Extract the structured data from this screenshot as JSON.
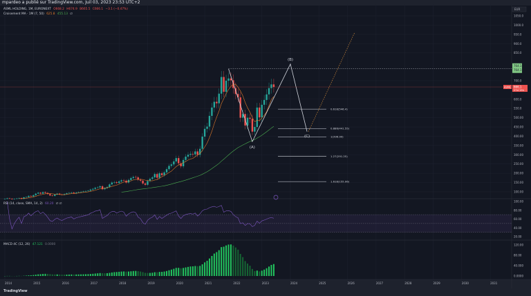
{
  "header": {
    "publisher_line": "mpardeo a publié sur TradingView.com, Juil 03, 2023 23:53 UTC+2"
  },
  "legend": {
    "symbol": "ASML HOLDING, 1M, EURONEXT",
    "open": "O668.2",
    "high": "H674.9",
    "low": "B665.5",
    "close": "C666.1",
    "change": "−3.1 (−0.47%)",
    "ma_label": "Croisement MA · 1M (7, 50)",
    "ma_fast": "625.8",
    "ma_slow": "455.13",
    "ma_extra": "∅",
    "rsi_label": "RSI (14, close, SMA, 14, 2)",
    "rsi_value": "60.20",
    "rsi_extra": "∅ ∅",
    "macd_label": "MACD 4C (12, 26)",
    "macd_value": "47.121",
    "macd_zero": "0.0000"
  },
  "colors": {
    "background": "#131722",
    "up": "#26a69a",
    "down": "#ef5350",
    "ma_fast": "#e07a2b",
    "ma_slow": "#4caf50",
    "rsi": "#7e57c2",
    "macd": "#22c55e",
    "wave": "#d1d4dc",
    "projection": "#d08a3a"
  },
  "price_axis": {
    "currency": "EUR",
    "ticks": [
      "1050.0",
      "1000.0",
      "950.0",
      "900.0",
      "850.0",
      "700.0",
      "600.0",
      "550.0",
      "500.00",
      "450.00",
      "400.00",
      "350.00",
      "300.00",
      "250.00",
      "200.00",
      "150.00",
      "100.00"
    ],
    "last_price_label": "666.1",
    "countdown": "27d 19h",
    "symbol_tag": "ASML",
    "level_label_1": "764.1",
    "level_label_2": "764.1"
  },
  "rsi_axis": {
    "ticks": [
      "100.00",
      "80.00",
      "60.00",
      "40.00",
      "20.00"
    ]
  },
  "macd_axis": {
    "ticks": [
      "120.00",
      "80.00",
      "40.000",
      "0.0000"
    ]
  },
  "time_axis": {
    "ticks": [
      "2014",
      "2015",
      "2016",
      "2017",
      "2018",
      "2019",
      "2020",
      "2021",
      "2022",
      "2023",
      "2024",
      "2025",
      "2026",
      "2027",
      "2028",
      "2029",
      "2030",
      "2031"
    ]
  },
  "footer": {
    "brand": "TradingView"
  },
  "chart_data": {
    "type": "candlestick",
    "interval": "1M",
    "start": "2014-01",
    "closes": [
      62,
      65,
      63,
      60,
      62,
      64,
      66,
      62,
      70,
      72,
      78,
      75,
      82,
      90,
      95,
      90,
      98,
      94,
      88,
      80,
      78,
      85,
      90,
      86,
      84,
      88,
      92,
      94,
      96,
      92,
      96,
      98,
      100,
      102,
      104,
      106,
      112,
      116,
      122,
      124,
      130,
      114,
      120,
      126,
      140,
      150,
      152,
      148,
      156,
      162,
      160,
      150,
      164,
      174,
      180,
      178,
      165,
      160,
      145,
      138,
      158,
      170,
      178,
      196,
      176,
      200,
      190,
      205,
      222,
      240,
      248,
      264,
      282,
      254,
      238,
      272,
      290,
      300,
      305,
      302,
      318,
      300,
      332,
      398,
      440,
      452,
      510,
      555,
      586,
      578,
      630,
      720,
      640,
      700,
      712,
      702,
      660,
      628,
      610,
      500,
      520,
      458,
      500,
      494,
      425,
      450,
      555,
      502,
      570,
      596,
      626,
      660,
      680,
      666.1
    ],
    "ylim": [
      80,
      1060
    ],
    "moving_averages": [
      {
        "name": "MA 7",
        "period": 7
      },
      {
        "name": "MA 50",
        "period": 50
      }
    ],
    "fib_levels": [
      {
        "ratio": "0.618",
        "price": 546.4,
        "label": "0.618(546.4)"
      },
      {
        "ratio": "0.886",
        "price": 441.55,
        "label": "0.886(441.55)"
      },
      {
        "ratio": "1",
        "price": 396.9,
        "label": "1(396.90)"
      },
      {
        "ratio": "1.27",
        "price": 291.25,
        "label": "1.27(291.25)"
      },
      {
        "ratio": "1.618",
        "price": 155.06,
        "label": "1.618(155.06)"
      }
    ],
    "waves": [
      {
        "label": "",
        "date": "2021-11",
        "price": 764.1
      },
      {
        "label": "(A)",
        "date": "2022-09",
        "price": 371
      },
      {
        "label": "(B)",
        "date": "2024-01",
        "price": 790
      },
      {
        "label": "(C)",
        "date": "2024-08",
        "price": 425
      },
      {
        "label": "",
        "date": "2026-04",
        "price": 960
      }
    ],
    "resistance_level": 764.1,
    "last_price": 666.1
  }
}
